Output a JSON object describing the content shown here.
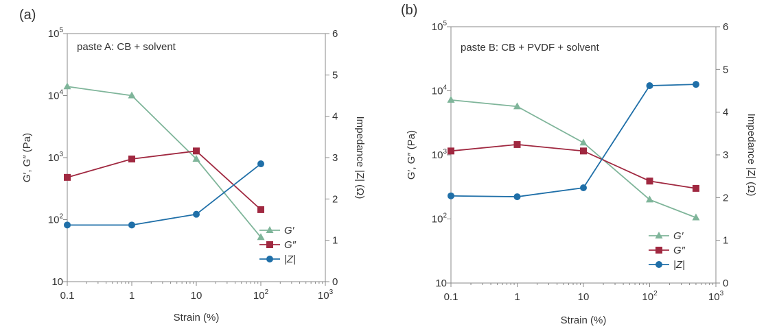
{
  "chart_data": [
    {
      "type": "line",
      "panel_label": "(a)",
      "annotation": "paste A: CB + solvent",
      "xlabel": "Strain (%)",
      "ylabel": "G′, G″ (Pa)",
      "y2label": "Impedance |Z| (Ω)",
      "xscale": "log",
      "yscale": "log",
      "xlim": [
        0.1,
        1000
      ],
      "ylim": [
        10,
        100000
      ],
      "y2lim": [
        0,
        6
      ],
      "x_ticks": [
        {
          "value": 0.1,
          "label": "0.1"
        },
        {
          "value": 1,
          "label": "1"
        },
        {
          "value": 10,
          "label": "10"
        },
        {
          "value": 100,
          "label": "10",
          "sup": "2"
        },
        {
          "value": 1000,
          "label": "10",
          "sup": "3"
        }
      ],
      "y_ticks": [
        {
          "value": 10,
          "label": "10"
        },
        {
          "value": 100,
          "label": "10",
          "sup": "2"
        },
        {
          "value": 1000,
          "label": "10",
          "sup": "3"
        },
        {
          "value": 10000,
          "label": "10",
          "sup": "4"
        },
        {
          "value": 100000,
          "label": "10",
          "sup": "5"
        }
      ],
      "y2_ticks": [
        "0",
        "1",
        "2",
        "3",
        "4",
        "5",
        "6"
      ],
      "legend_position": "bottom-right",
      "series": [
        {
          "name": "G′",
          "axis": "left",
          "marker": "triangle",
          "color": "#7fb59a",
          "x": [
            0.1,
            1,
            10,
            100
          ],
          "y": [
            14000,
            10000,
            950,
            52
          ]
        },
        {
          "name": "G″",
          "axis": "left",
          "marker": "square",
          "color": "#a02840",
          "x": [
            0.1,
            1,
            10,
            100
          ],
          "y": [
            480,
            950,
            1280,
            145
          ]
        },
        {
          "name": "|Z|",
          "axis": "right",
          "marker": "circle",
          "color": "#1f6fa8",
          "x": [
            0.1,
            1,
            10,
            100
          ],
          "y": [
            1.37,
            1.37,
            1.63,
            2.85
          ]
        }
      ]
    },
    {
      "type": "line",
      "panel_label": "(b)",
      "annotation": "paste B: CB + PVDF + solvent",
      "xlabel": "Strain (%)",
      "ylabel": "G′, G″ (Pa)",
      "y2label": "Impedance |Z| (Ω)",
      "xscale": "log",
      "yscale": "log",
      "xlim": [
        0.1,
        1000
      ],
      "ylim": [
        10,
        100000
      ],
      "y2lim": [
        0,
        6
      ],
      "x_ticks": [
        {
          "value": 0.1,
          "label": "0.1"
        },
        {
          "value": 1,
          "label": "1"
        },
        {
          "value": 10,
          "label": "10"
        },
        {
          "value": 100,
          "label": "10",
          "sup": "2"
        },
        {
          "value": 1000,
          "label": "10",
          "sup": "3"
        }
      ],
      "y_ticks": [
        {
          "value": 10,
          "label": "10"
        },
        {
          "value": 100,
          "label": "10",
          "sup": "2"
        },
        {
          "value": 1000,
          "label": "10",
          "sup": "3"
        },
        {
          "value": 10000,
          "label": "10",
          "sup": "4"
        },
        {
          "value": 100000,
          "label": "10",
          "sup": "5"
        }
      ],
      "y2_ticks": [
        "0",
        "1",
        "2",
        "3",
        "4",
        "5",
        "6"
      ],
      "legend_position": "bottom-right",
      "series": [
        {
          "name": "G′",
          "axis": "left",
          "marker": "triangle",
          "color": "#7fb59a",
          "x": [
            0.1,
            1,
            10,
            100,
            500
          ],
          "y": [
            7200,
            5700,
            1550,
            200,
            105
          ]
        },
        {
          "name": "G″",
          "axis": "left",
          "marker": "square",
          "color": "#a02840",
          "x": [
            0.1,
            1,
            10,
            100,
            500
          ],
          "y": [
            1150,
            1450,
            1150,
            390,
            300
          ]
        },
        {
          "name": "|Z|",
          "axis": "right",
          "marker": "circle",
          "color": "#1f6fa8",
          "x": [
            0.1,
            1,
            10,
            100,
            500
          ],
          "y": [
            2.04,
            2.02,
            2.23,
            4.62,
            4.65
          ]
        }
      ]
    }
  ]
}
